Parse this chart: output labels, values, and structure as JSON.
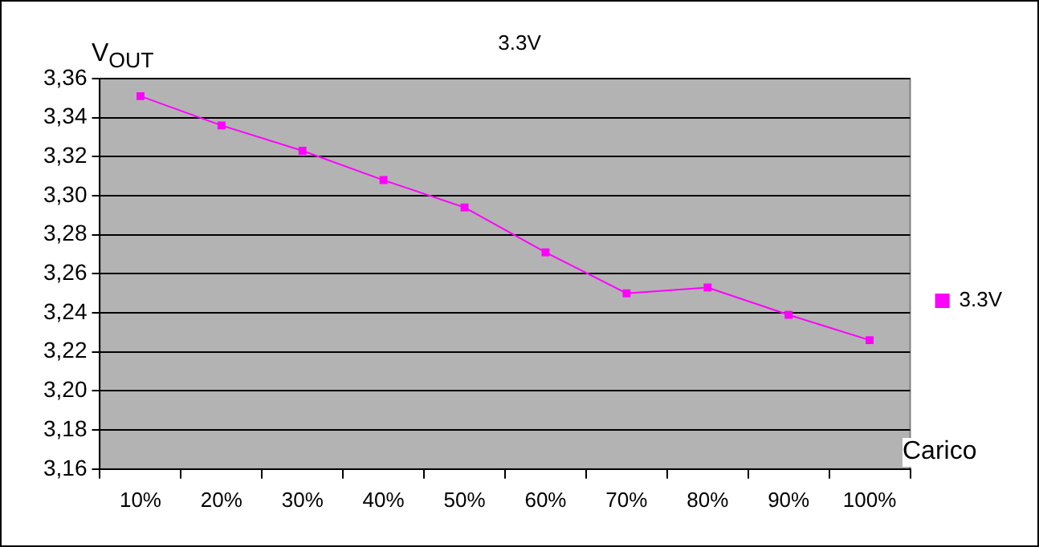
{
  "chart_data": {
    "type": "line",
    "title": "3.3V",
    "xlabel": "Carico",
    "ylabel": "V$_{OUT}$",
    "categories": [
      "10%",
      "20%",
      "30%",
      "40%",
      "50%",
      "60%",
      "70%",
      "80%",
      "90%",
      "100%"
    ],
    "series": [
      {
        "name": "3.3V",
        "color": "#ff00ff",
        "values": [
          3.351,
          3.336,
          3.323,
          3.308,
          3.294,
          3.271,
          3.25,
          3.253,
          3.239,
          3.226
        ]
      }
    ],
    "ylim": [
      3.16,
      3.36
    ],
    "yticks": [
      {
        "value": 3.16,
        "label": "3,16"
      },
      {
        "value": 3.18,
        "label": "3,18"
      },
      {
        "value": 3.2,
        "label": "3,20"
      },
      {
        "value": 3.22,
        "label": "3,22"
      },
      {
        "value": 3.24,
        "label": "3,24"
      },
      {
        "value": 3.26,
        "label": "3,26"
      },
      {
        "value": 3.28,
        "label": "3,28"
      },
      {
        "value": 3.3,
        "label": "3,30"
      },
      {
        "value": 3.32,
        "label": "3,32"
      },
      {
        "value": 3.34,
        "label": "3,34"
      },
      {
        "value": 3.36,
        "label": "3,36"
      }
    ],
    "grid": "y",
    "legend": "right",
    "marker": "square",
    "line_style": "solid"
  }
}
